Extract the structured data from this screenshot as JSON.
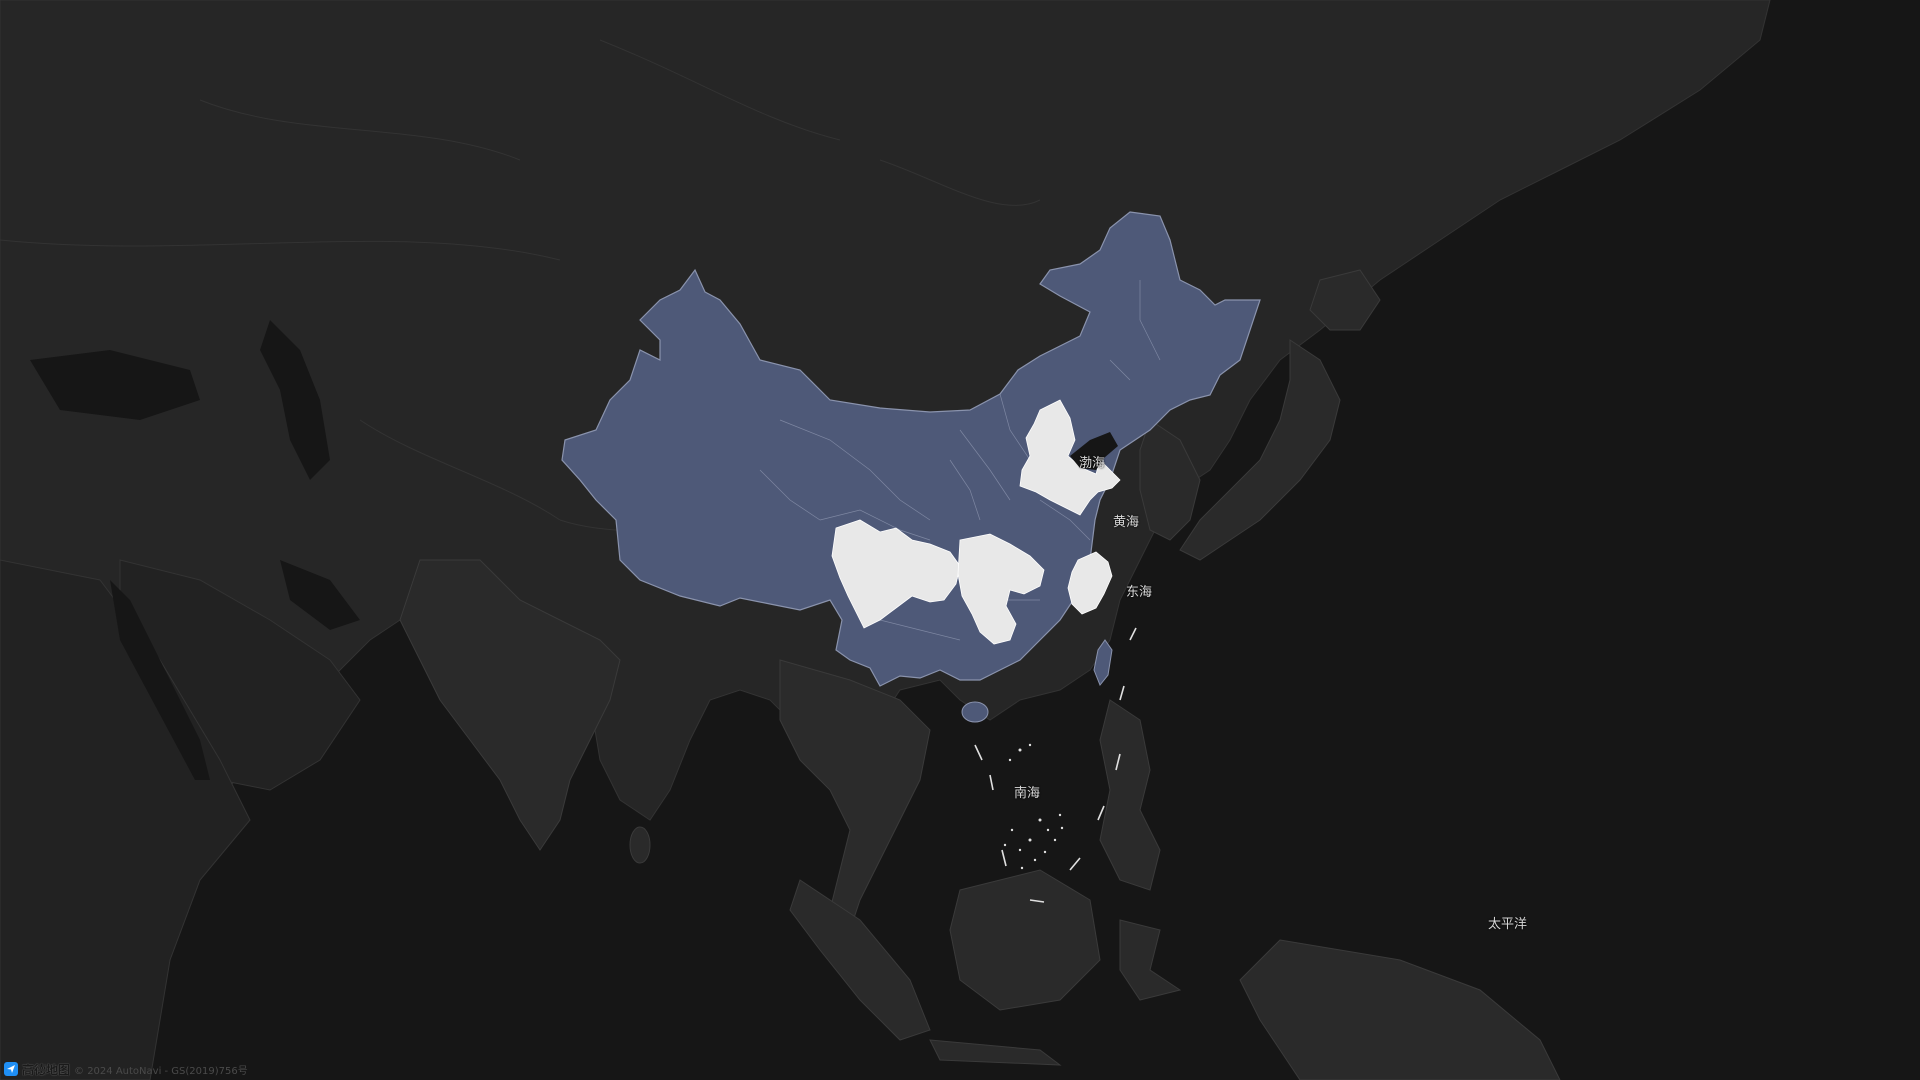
{
  "map": {
    "provider_logo_text": "高德地图",
    "copyright_text": "© 2024 AutoNavi - GS(2019)756号",
    "colors": {
      "background": "#161616",
      "land": "#262626",
      "land_dark": "#1f1f1f",
      "borders": "#3a3a3a",
      "china_fill": "#4e5978",
      "china_stroke": "#8a93ad",
      "highlight_fill": "#e8e8e8"
    },
    "sea_labels": {
      "bohai": "渤海",
      "yellow_sea": "黄海",
      "east_china_sea": "东海",
      "south_china_sea": "南海",
      "pacific": "太平洋"
    },
    "highlighted_regions": [
      "北京",
      "天津",
      "河北",
      "山东",
      "四川",
      "重庆",
      "湖北",
      "浙江",
      "上海"
    ]
  }
}
